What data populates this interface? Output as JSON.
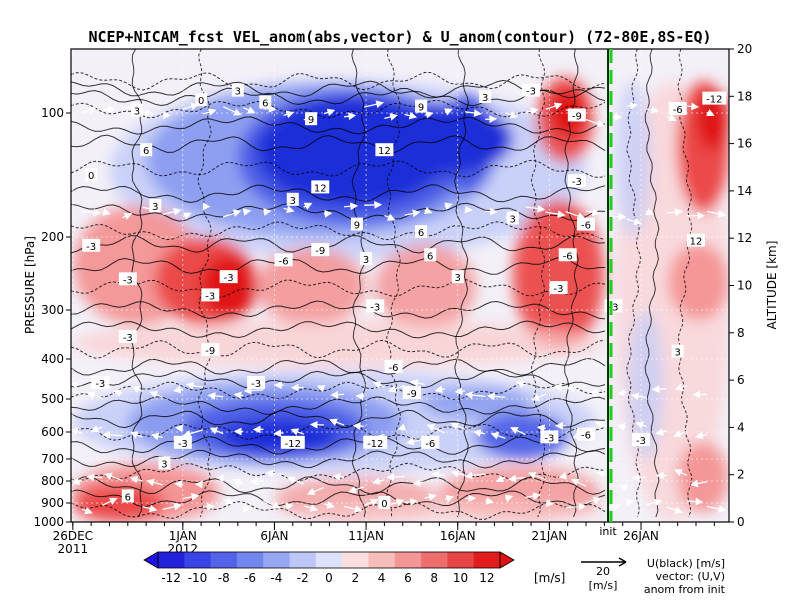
{
  "chart_data": {
    "type": "heatmap",
    "title": "NCEP+NICAM_fcst VEL_anom(abs,vector) & U_anom(contour)   (72-80E,8S-EQ)",
    "ylabel_left": "PRESSURE [hPa]",
    "ylabel_right": "ALTITUDE [km]",
    "pressure_ticks": [
      "100",
      "200",
      "300",
      "400",
      "500",
      "600",
      "700",
      "800",
      "900",
      "1000"
    ],
    "pressure_values": [
      100,
      200,
      300,
      400,
      500,
      600,
      700,
      800,
      900,
      1000
    ],
    "altitude_ticks": [
      "0",
      "2",
      "4",
      "6",
      "8",
      "10",
      "12",
      "14",
      "16",
      "18",
      "20"
    ],
    "x_ticks": [
      {
        "label": "26DEC",
        "day": 0,
        "year": "2011"
      },
      {
        "label": "1JAN",
        "day": 6,
        "year": "2012"
      },
      {
        "label": "6JAN",
        "day": 11
      },
      {
        "label": "11JAN",
        "day": 16
      },
      {
        "label": "16JAN",
        "day": 21
      },
      {
        "label": "21JAN",
        "day": 26
      },
      {
        "label": "26JAN",
        "day": 31
      }
    ],
    "x_range_days": [
      -0.1,
      35.8
    ],
    "init_label": "init",
    "init_day": 29.2,
    "colorbar": {
      "ticks": [
        "-12",
        "-10",
        "-8",
        "-6",
        "-4",
        "-2",
        "0",
        "2",
        "4",
        "6",
        "8",
        "10",
        "12"
      ],
      "unit": "[m/s]",
      "colors": [
        "#2222dd",
        "#3a44e4",
        "#5563e8",
        "#7486ee",
        "#97a6f2",
        "#bcc6f7",
        "#dde2fa",
        "#fbdede",
        "#f7bcbc",
        "#f29696",
        "#ee6e6e",
        "#e84646",
        "#e01c1c"
      ]
    },
    "vector_key": {
      "value": "20",
      "unit": "[m/s]"
    },
    "legend_text": [
      "U(black) [m/s]",
      "vector: (U,V)",
      "anom from init"
    ],
    "contour_labels": [
      {
        "text": "3",
        "day": 3.5,
        "p": 97
      },
      {
        "text": "0",
        "day": 7.0,
        "p": 84
      },
      {
        "text": "3",
        "day": 9.0,
        "p": 72
      },
      {
        "text": "6",
        "day": 10.5,
        "p": 87
      },
      {
        "text": "9",
        "day": 13.0,
        "p": 105
      },
      {
        "text": "12",
        "day": 13.5,
        "p": 160
      },
      {
        "text": "12",
        "day": 17.0,
        "p": 130
      },
      {
        "text": "9",
        "day": 19.0,
        "p": 92
      },
      {
        "text": "3",
        "day": 22.5,
        "p": 80
      },
      {
        "text": "-3",
        "day": 25.0,
        "p": 72
      },
      {
        "text": "-9",
        "day": 27.5,
        "p": 102
      },
      {
        "text": "-3",
        "day": 27.5,
        "p": 155
      },
      {
        "text": "-6",
        "day": 28.0,
        "p": 190
      },
      {
        "text": "6",
        "day": 4.0,
        "p": 130
      },
      {
        "text": "0",
        "day": 1.0,
        "p": 150
      },
      {
        "text": "3",
        "day": 4.5,
        "p": 175
      },
      {
        "text": "3",
        "day": 12.0,
        "p": 170
      },
      {
        "text": "9",
        "day": 15.5,
        "p": 190
      },
      {
        "text": "6",
        "day": 19.0,
        "p": 196
      },
      {
        "text": "3",
        "day": 24.0,
        "p": 185
      },
      {
        "text": "-3",
        "day": 1.0,
        "p": 212
      },
      {
        "text": "-3",
        "day": 3.0,
        "p": 258
      },
      {
        "text": "-3",
        "day": 8.5,
        "p": 255
      },
      {
        "text": "-3",
        "day": 7.5,
        "p": 280
      },
      {
        "text": "-6",
        "day": 11.5,
        "p": 232
      },
      {
        "text": "-9",
        "day": 13.5,
        "p": 218
      },
      {
        "text": "-3",
        "day": 16.5,
        "p": 295
      },
      {
        "text": "3",
        "day": 16.0,
        "p": 230
      },
      {
        "text": "6",
        "day": 19.5,
        "p": 225
      },
      {
        "text": "3",
        "day": 21.0,
        "p": 255
      },
      {
        "text": "-6",
        "day": 27.0,
        "p": 225
      },
      {
        "text": "-3",
        "day": 26.5,
        "p": 270
      },
      {
        "text": "-3",
        "day": 29.5,
        "p": 295
      },
      {
        "text": "-3",
        "day": 3.0,
        "p": 355
      },
      {
        "text": "-9",
        "day": 7.5,
        "p": 382
      },
      {
        "text": "-6",
        "day": 17.5,
        "p": 420
      },
      {
        "text": "-3",
        "day": 10.0,
        "p": 460
      },
      {
        "text": "-9",
        "day": 18.5,
        "p": 485
      },
      {
        "text": "-3",
        "day": 6.0,
        "p": 640
      },
      {
        "text": "-12",
        "day": 12.0,
        "p": 640
      },
      {
        "text": "-12",
        "day": 16.5,
        "p": 640
      },
      {
        "text": "-6",
        "day": 19.5,
        "p": 640
      },
      {
        "text": "-3",
        "day": 26.0,
        "p": 620
      },
      {
        "text": "-6",
        "day": 28.0,
        "p": 610
      },
      {
        "text": "-3",
        "day": 31.0,
        "p": 630
      },
      {
        "text": "3",
        "day": 5.0,
        "p": 720
      },
      {
        "text": "6",
        "day": 3.0,
        "p": 870
      },
      {
        "text": "0",
        "day": 17.0,
        "p": 900
      },
      {
        "text": "-3",
        "day": 1.5,
        "p": 460
      },
      {
        "text": "-12",
        "day": 35.0,
        "p": 82
      },
      {
        "text": "-6",
        "day": 33.0,
        "p": 95
      },
      {
        "text": "12",
        "day": 34.0,
        "p": 205
      },
      {
        "text": "3",
        "day": 33.0,
        "p": 385
      }
    ]
  }
}
